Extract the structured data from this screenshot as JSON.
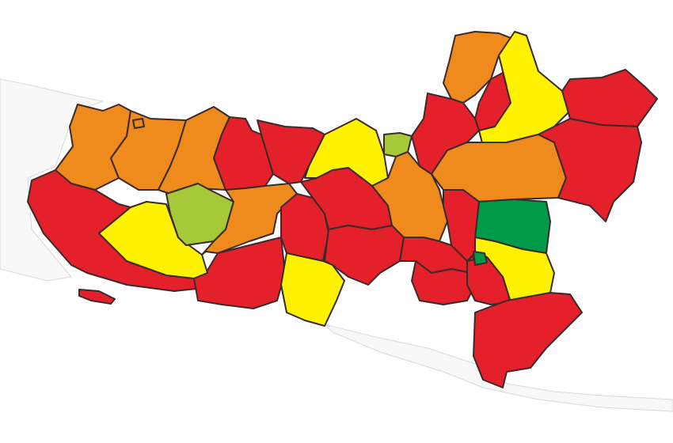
{
  "palette": {
    "red": "#e4202a",
    "orange": "#ef8a1d",
    "yellow": "#fff200",
    "light_green": "#a6c93a",
    "dark_green": "#009a4a",
    "background_land": "#f8f8f8",
    "border": "#3a2a2a"
  },
  "regions": [
    {
      "name": "west-coast-1",
      "color": "orange"
    },
    {
      "name": "west-coast-2",
      "color": "orange"
    },
    {
      "name": "west-coast-3",
      "color": "orange"
    },
    {
      "name": "west-coast-4",
      "color": "orange"
    },
    {
      "name": "south-west-large",
      "color": "red"
    },
    {
      "name": "south-west-small",
      "color": "red"
    },
    {
      "name": "island-west",
      "color": "red"
    },
    {
      "name": "west-center-yellow",
      "color": "yellow"
    },
    {
      "name": "west-center-lightgreen",
      "color": "light_green"
    },
    {
      "name": "north-center-1",
      "color": "red"
    },
    {
      "name": "north-center-2",
      "color": "red"
    },
    {
      "name": "center-orange-1",
      "color": "orange"
    },
    {
      "name": "south-center-1",
      "color": "red"
    },
    {
      "name": "center-red-1",
      "color": "red"
    },
    {
      "name": "center-red-2",
      "color": "red"
    },
    {
      "name": "south-center-yellow",
      "color": "yellow"
    },
    {
      "name": "north-yellow-1",
      "color": "yellow"
    },
    {
      "name": "north-lightgreen-small",
      "color": "light_green"
    },
    {
      "name": "center-orange-2",
      "color": "orange"
    },
    {
      "name": "center-red-3",
      "color": "red"
    },
    {
      "name": "center-red-4",
      "color": "red"
    },
    {
      "name": "east-orange-top",
      "color": "orange"
    },
    {
      "name": "east-yellow-top",
      "color": "yellow"
    },
    {
      "name": "east-red-north-1",
      "color": "red"
    },
    {
      "name": "east-red-north-2",
      "color": "red"
    },
    {
      "name": "east-red-ne",
      "color": "red"
    },
    {
      "name": "east-orange-mid",
      "color": "orange"
    },
    {
      "name": "east-red-right",
      "color": "red"
    },
    {
      "name": "east-darkgreen",
      "color": "dark_green"
    },
    {
      "name": "east-yellow-south",
      "color": "yellow"
    },
    {
      "name": "east-red-south-1",
      "color": "red"
    },
    {
      "name": "east-red-south-2",
      "color": "red"
    },
    {
      "name": "east-red-south-3",
      "color": "red"
    }
  ]
}
